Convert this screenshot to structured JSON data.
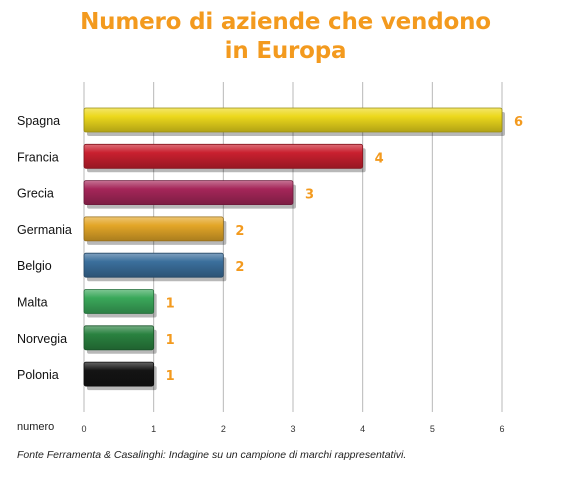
{
  "chart_data": {
    "type": "bar",
    "orientation": "horizontal",
    "title_lines": [
      "Numero di aziende che vendono",
      "in Europa"
    ],
    "categories": [
      "Spagna",
      "Francia",
      "Grecia",
      "Germania",
      "Belgio",
      "Malta",
      "Norvegia",
      "Polonia"
    ],
    "values": [
      6,
      4,
      3,
      2,
      2,
      1,
      1,
      1
    ],
    "data_labels": [
      "6",
      "4",
      "3",
      "2",
      "2",
      "1",
      "1",
      "1"
    ],
    "bar_colors": [
      "#ecd81c",
      "#c9202f",
      "#a52659",
      "#e3a628",
      "#3b6f9c",
      "#3aa85a",
      "#2a8240",
      "#141414"
    ],
    "xlabel": "numero",
    "xlim": [
      0,
      6
    ],
    "xticks": [
      0,
      1,
      2,
      3,
      4,
      5,
      6
    ],
    "grid": true,
    "legend": "none"
  },
  "source": "Fonte Ferramenta & Casalinghi: Indagine su un campione di marchi rappresentativi.",
  "colors": {
    "title": "#f39a1e",
    "data_label": "#f39a1e",
    "grid": "#b8b8b8",
    "text": "#222222"
  }
}
